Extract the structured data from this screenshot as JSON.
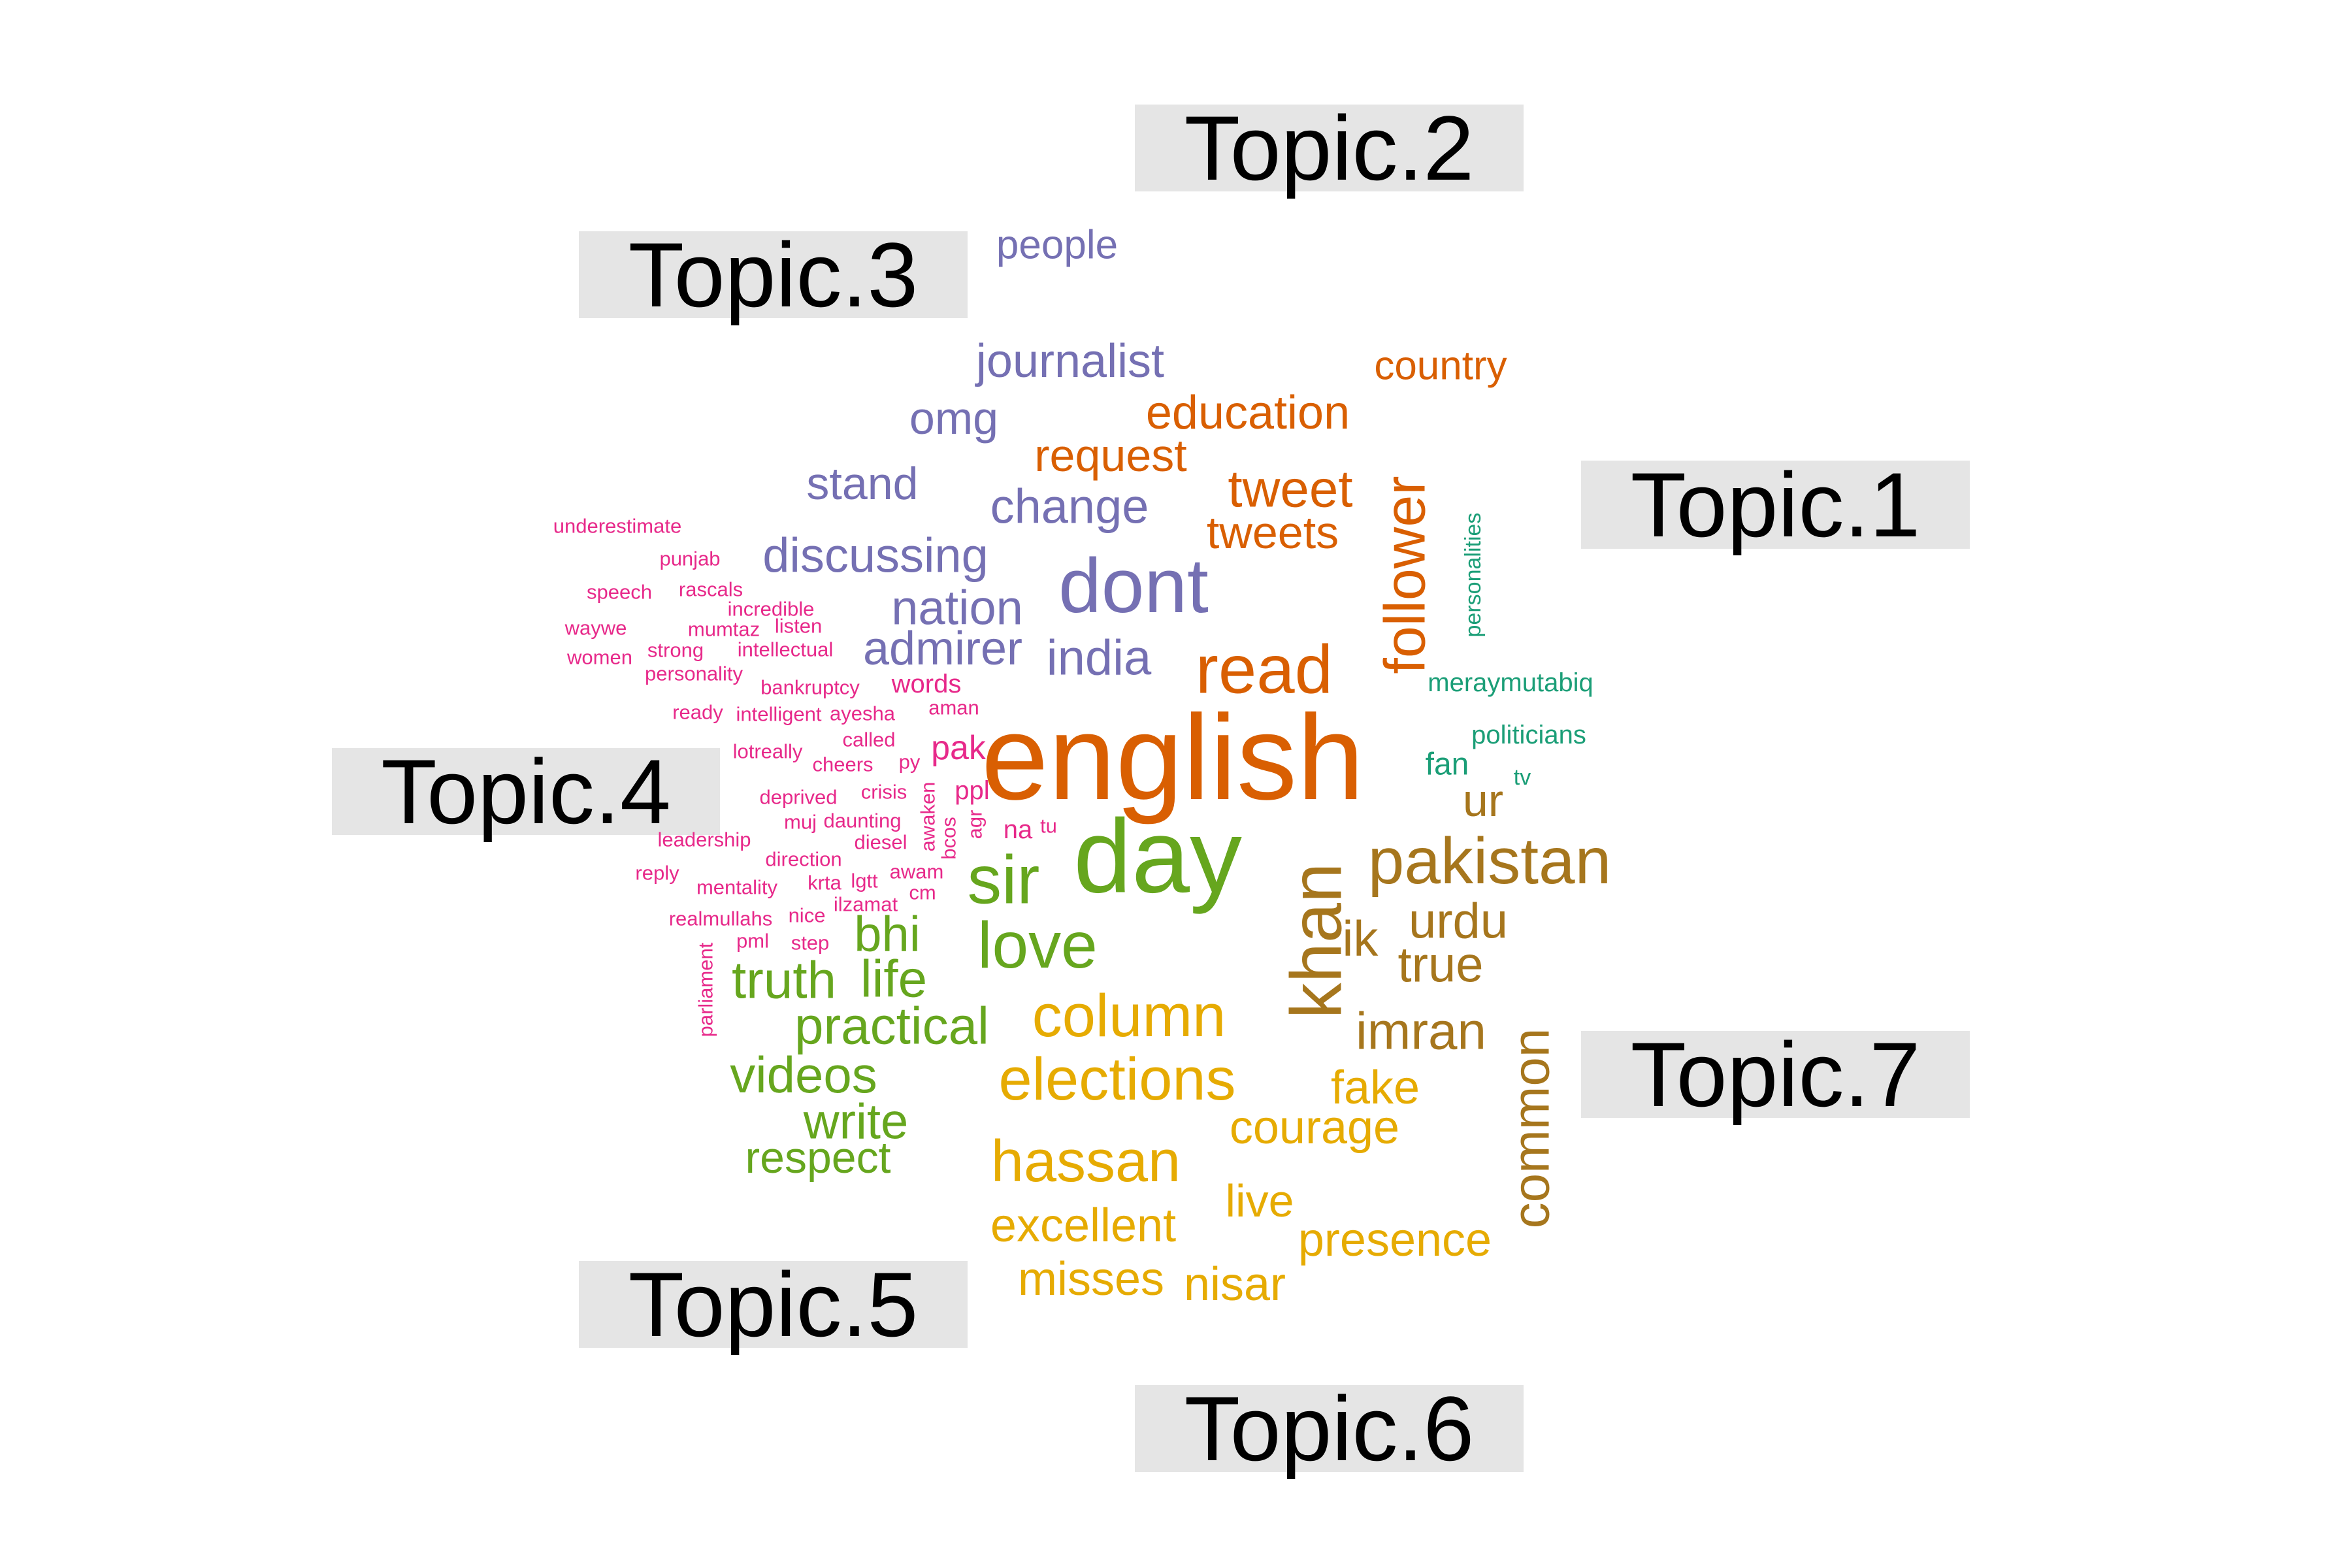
{
  "colors": {
    "topic1": "#D95F02",
    "topic2": "#7570B3",
    "topic3": "#7570B3",
    "topic4": "#E7298A",
    "topic5": "#66A61E",
    "topic6": "#E6AB02",
    "topic7": "#A6761D",
    "topic_extra": "#1B9E77",
    "label_box": "#e5e5e5",
    "label_text": "#000000"
  },
  "topic_labels": [
    "Topic.1",
    "Topic.2",
    "Topic.3",
    "Topic.4",
    "Topic.5",
    "Topic.6",
    "Topic.7"
  ],
  "words": [
    {
      "text": "english",
      "topic": 1
    },
    {
      "text": "read",
      "topic": 1
    },
    {
      "text": "follower",
      "topic": 1
    },
    {
      "text": "tweet",
      "topic": 1
    },
    {
      "text": "tweets",
      "topic": 1
    },
    {
      "text": "education",
      "topic": 1
    },
    {
      "text": "request",
      "topic": 1
    },
    {
      "text": "country",
      "topic": 1
    },
    {
      "text": "people",
      "topic": 2
    },
    {
      "text": "journalist",
      "topic": 2
    },
    {
      "text": "omg",
      "topic": 2
    },
    {
      "text": "stand",
      "topic": 2
    },
    {
      "text": "change",
      "topic": 2
    },
    {
      "text": "dont",
      "topic": 2
    },
    {
      "text": "discussing",
      "topic": 2
    },
    {
      "text": "nation",
      "topic": 2
    },
    {
      "text": "admirer",
      "topic": 2
    },
    {
      "text": "india",
      "topic": 2
    },
    {
      "text": "underestimate",
      "topic": 4
    },
    {
      "text": "punjab",
      "topic": 4
    },
    {
      "text": "speech",
      "topic": 4
    },
    {
      "text": "rascals",
      "topic": 4
    },
    {
      "text": "incredible",
      "topic": 4
    },
    {
      "text": "waywe",
      "topic": 4
    },
    {
      "text": "mumtaz",
      "topic": 4
    },
    {
      "text": "listen",
      "topic": 4
    },
    {
      "text": "women",
      "topic": 4
    },
    {
      "text": "strong",
      "topic": 4
    },
    {
      "text": "intellectual",
      "topic": 4
    },
    {
      "text": "personality",
      "topic": 4
    },
    {
      "text": "bankruptcy",
      "topic": 4
    },
    {
      "text": "words",
      "topic": 4
    },
    {
      "text": "ready",
      "topic": 4
    },
    {
      "text": "intelligent",
      "topic": 4
    },
    {
      "text": "ayesha",
      "topic": 4
    },
    {
      "text": "aman",
      "topic": 4
    },
    {
      "text": "lotreally",
      "topic": 4
    },
    {
      "text": "called",
      "topic": 4
    },
    {
      "text": "pak",
      "topic": 4
    },
    {
      "text": "cheers",
      "topic": 4
    },
    {
      "text": "py",
      "topic": 4
    },
    {
      "text": "deprived",
      "topic": 4
    },
    {
      "text": "crisis",
      "topic": 4
    },
    {
      "text": "ppl",
      "topic": 4
    },
    {
      "text": "muj",
      "topic": 4
    },
    {
      "text": "daunting",
      "topic": 4
    },
    {
      "text": "awaken",
      "topic": 4
    },
    {
      "text": "bcos",
      "topic": 4
    },
    {
      "text": "agr",
      "topic": 4
    },
    {
      "text": "na",
      "topic": 4
    },
    {
      "text": "tu",
      "topic": 4
    },
    {
      "text": "leadership",
      "topic": 4
    },
    {
      "text": "diesel",
      "topic": 4
    },
    {
      "text": "direction",
      "topic": 4
    },
    {
      "text": "reply",
      "topic": 4
    },
    {
      "text": "mentality",
      "topic": 4
    },
    {
      "text": "krta",
      "topic": 4
    },
    {
      "text": "lgtt",
      "topic": 4
    },
    {
      "text": "awam",
      "topic": 4
    },
    {
      "text": "cm",
      "topic": 4
    },
    {
      "text": "ilzamat",
      "topic": 4
    },
    {
      "text": "realmullahs",
      "topic": 4
    },
    {
      "text": "nice",
      "topic": 4
    },
    {
      "text": "pml",
      "topic": 4
    },
    {
      "text": "step",
      "topic": 4
    },
    {
      "text": "parliament",
      "topic": 4
    },
    {
      "text": "day",
      "topic": 5
    },
    {
      "text": "sir",
      "topic": 5
    },
    {
      "text": "love",
      "topic": 5
    },
    {
      "text": "bhi",
      "topic": 5
    },
    {
      "text": "truth",
      "topic": 5
    },
    {
      "text": "life",
      "topic": 5
    },
    {
      "text": "practical",
      "topic": 5
    },
    {
      "text": "videos",
      "topic": 5
    },
    {
      "text": "write",
      "topic": 5
    },
    {
      "text": "respect",
      "topic": 5
    },
    {
      "text": "column",
      "topic": 6
    },
    {
      "text": "elections",
      "topic": 6
    },
    {
      "text": "hassan",
      "topic": 6
    },
    {
      "text": "courage",
      "topic": 6
    },
    {
      "text": "fake",
      "topic": 6
    },
    {
      "text": "live",
      "topic": 6
    },
    {
      "text": "excellent",
      "topic": 6
    },
    {
      "text": "presence",
      "topic": 6
    },
    {
      "text": "misses",
      "topic": 6
    },
    {
      "text": "nisar",
      "topic": 6
    },
    {
      "text": "pakistan",
      "topic": 7
    },
    {
      "text": "khan",
      "topic": 7
    },
    {
      "text": "ik",
      "topic": 7
    },
    {
      "text": "urdu",
      "topic": 7
    },
    {
      "text": "true",
      "topic": 7
    },
    {
      "text": "ur",
      "topic": 7
    },
    {
      "text": "imran",
      "topic": 7
    },
    {
      "text": "common",
      "topic": 7
    },
    {
      "text": "personalities",
      "topic": 8
    },
    {
      "text": "meraymutabiq",
      "topic": 8
    },
    {
      "text": "politicians",
      "topic": 8
    },
    {
      "text": "fan",
      "topic": 8
    },
    {
      "text": "tv",
      "topic": 8
    }
  ]
}
